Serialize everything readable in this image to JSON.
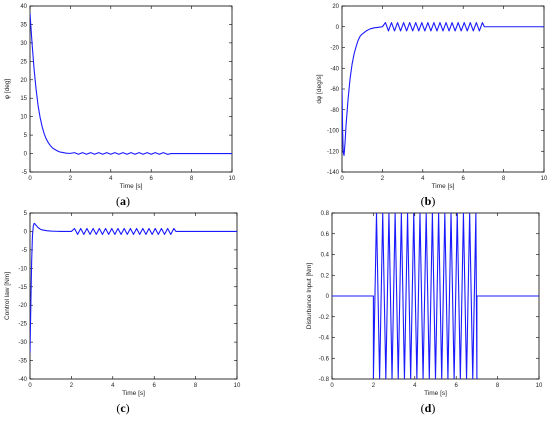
{
  "chart_data": [
    {
      "type": "line",
      "caption_open": "(",
      "caption_letter": "a",
      "caption_close": ")",
      "xlabel": "Time [s]",
      "ylabel": "φ [deg]",
      "xlim": [
        0,
        10
      ],
      "ylim": [
        -5,
        40
      ],
      "xticks": [
        0,
        2,
        4,
        6,
        8,
        10
      ],
      "yticks": [
        -5,
        0,
        5,
        10,
        15,
        20,
        25,
        30,
        35,
        40
      ],
      "line_color": "#1a1aff",
      "series": [
        {
          "x": [
            0,
            0.1,
            0.2,
            0.3,
            0.4,
            0.5,
            0.6,
            0.7,
            0.8,
            0.9,
            1.0,
            1.1,
            1.2,
            1.3,
            1.4,
            1.5,
            1.6,
            1.7,
            1.8,
            2.0,
            2.2,
            2.4,
            2.6,
            2.8,
            3.0,
            3.2,
            3.4,
            3.6,
            3.8,
            4.0,
            4.2,
            4.4,
            4.6,
            4.8,
            5.0,
            5.2,
            5.4,
            5.6,
            5.8,
            6.0,
            6.2,
            6.4,
            6.6,
            6.8,
            7.0,
            7.5,
            8.0,
            9.0,
            10.0
          ],
          "y": [
            38,
            30,
            23,
            17.5,
            13,
            9.8,
            7.3,
            5.4,
            4,
            3,
            2.2,
            1.6,
            1.2,
            0.9,
            0.6,
            0.4,
            0.3,
            0.2,
            0.1,
            0.05,
            0.25,
            -0.2,
            0.25,
            -0.2,
            0.25,
            -0.2,
            0.25,
            -0.2,
            0.25,
            -0.2,
            0.25,
            -0.2,
            0.25,
            -0.2,
            0.25,
            -0.2,
            0.25,
            -0.2,
            0.25,
            -0.2,
            0.25,
            -0.2,
            0.25,
            -0.2,
            0.0,
            0,
            0,
            0,
            0
          ]
        }
      ]
    },
    {
      "type": "line",
      "caption_open": "(",
      "caption_letter": "b",
      "caption_close": ")",
      "xlabel": "Time [s]",
      "ylabel": "dφ [deg/s]",
      "xlim": [
        0,
        10
      ],
      "ylim": [
        -140,
        20
      ],
      "xticks": [
        0,
        2,
        4,
        6,
        8,
        10
      ],
      "yticks": [
        -140,
        -120,
        -100,
        -80,
        -60,
        -40,
        -20,
        0,
        20
      ],
      "line_color": "#1a1aff",
      "series": [
        {
          "x": [
            0,
            0.03,
            0.06,
            0.1,
            0.15,
            0.2,
            0.3,
            0.4,
            0.5,
            0.6,
            0.7,
            0.8,
            0.9,
            1.0,
            1.2,
            1.4,
            1.6,
            1.8,
            2.0,
            2.15,
            2.3,
            2.45,
            2.6,
            2.75,
            2.9,
            3.05,
            3.2,
            3.35,
            3.5,
            3.65,
            3.8,
            3.95,
            4.1,
            4.25,
            4.4,
            4.55,
            4.7,
            4.85,
            5.0,
            5.15,
            5.3,
            5.45,
            5.6,
            5.75,
            5.9,
            6.05,
            6.2,
            6.35,
            6.5,
            6.65,
            6.8,
            6.95,
            7.05,
            7.5,
            8.0,
            9.0,
            10.0
          ],
          "y": [
            -60,
            -100,
            -121,
            -124,
            -112,
            -95,
            -70,
            -50,
            -36,
            -26,
            -19,
            -13,
            -9,
            -7,
            -4,
            -2,
            -1,
            -0.5,
            0,
            4,
            -4,
            4,
            -4,
            4,
            -4,
            4,
            -4,
            4,
            -4,
            4,
            -4,
            4,
            -4,
            4,
            -4,
            4,
            -4,
            4,
            -4,
            4,
            -4,
            4,
            -4,
            4,
            -4,
            4,
            -4,
            4,
            -4,
            4,
            -4,
            4,
            0,
            0,
            0,
            0,
            0
          ]
        }
      ]
    },
    {
      "type": "line",
      "caption_open": "(",
      "caption_letter": "c",
      "caption_close": ")",
      "xlabel": "Time [s]",
      "ylabel": "Control law [Nm]",
      "xlim": [
        0,
        10
      ],
      "ylim": [
        -40,
        5
      ],
      "xticks": [
        0,
        2,
        4,
        6,
        8,
        10
      ],
      "yticks": [
        -40,
        -35,
        -30,
        -25,
        -20,
        -15,
        -10,
        -5,
        0,
        5
      ],
      "line_color": "#1a1aff",
      "series": [
        {
          "x": [
            0,
            0.04,
            0.08,
            0.12,
            0.16,
            0.2,
            0.25,
            0.3,
            0.4,
            0.5,
            0.6,
            0.8,
            1.0,
            1.2,
            1.5,
            2.0,
            2.15,
            2.3,
            2.45,
            2.6,
            2.75,
            2.9,
            3.05,
            3.2,
            3.35,
            3.5,
            3.65,
            3.8,
            3.95,
            4.1,
            4.25,
            4.4,
            4.55,
            4.7,
            4.85,
            5.0,
            5.15,
            5.3,
            5.45,
            5.6,
            5.75,
            5.9,
            6.05,
            6.2,
            6.35,
            6.5,
            6.65,
            6.8,
            6.95,
            7.05,
            7.5,
            8.0,
            9.0,
            10.0
          ],
          "y": [
            -33,
            -20,
            -8,
            -1,
            1.5,
            2.2,
            2,
            1.6,
            1,
            0.6,
            0.4,
            0.2,
            0.1,
            0.05,
            0,
            0,
            0.8,
            -0.8,
            0.8,
            -0.8,
            0.8,
            -0.8,
            0.8,
            -0.8,
            0.8,
            -0.8,
            0.8,
            -0.8,
            0.8,
            -0.8,
            0.8,
            -0.8,
            0.8,
            -0.8,
            0.8,
            -0.8,
            0.8,
            -0.8,
            0.8,
            -0.8,
            0.8,
            -0.8,
            0.8,
            -0.8,
            0.8,
            -0.8,
            0.8,
            -0.8,
            0.8,
            0,
            0,
            0,
            0,
            0
          ]
        }
      ]
    },
    {
      "type": "line",
      "caption_open": "(",
      "caption_letter": "d",
      "caption_close": ")",
      "xlabel": "Time [s]",
      "ylabel": "Disturbance Input [Nm]",
      "xlim": [
        0,
        10
      ],
      "ylim": [
        -0.8,
        0.8
      ],
      "xticks": [
        0,
        2,
        4,
        6,
        8,
        10
      ],
      "yticks": [
        -0.8,
        -0.6,
        -0.4,
        -0.2,
        0,
        0.2,
        0.4,
        0.6,
        0.8
      ],
      "line_color": "#1a1aff",
      "series": [
        {
          "x": [
            0,
            2.0,
            2.0,
            2.15,
            2.3,
            2.45,
            2.6,
            2.75,
            2.9,
            3.05,
            3.2,
            3.35,
            3.5,
            3.65,
            3.8,
            3.95,
            4.1,
            4.25,
            4.4,
            4.55,
            4.7,
            4.85,
            5.0,
            5.15,
            5.3,
            5.45,
            5.6,
            5.75,
            5.9,
            6.05,
            6.2,
            6.35,
            6.5,
            6.65,
            6.8,
            6.95,
            7.0,
            7.0,
            10.0
          ],
          "y": [
            0,
            0,
            -0.8,
            0.8,
            -0.8,
            0.8,
            -0.8,
            0.8,
            -0.8,
            0.8,
            -0.8,
            0.8,
            -0.8,
            0.8,
            -0.8,
            0.8,
            -0.8,
            0.8,
            -0.8,
            0.8,
            -0.8,
            0.8,
            -0.8,
            0.8,
            -0.8,
            0.8,
            -0.8,
            0.8,
            -0.8,
            0.8,
            -0.8,
            0.8,
            -0.8,
            0.8,
            -0.8,
            0.8,
            -0.8,
            0,
            0
          ]
        }
      ]
    }
  ]
}
